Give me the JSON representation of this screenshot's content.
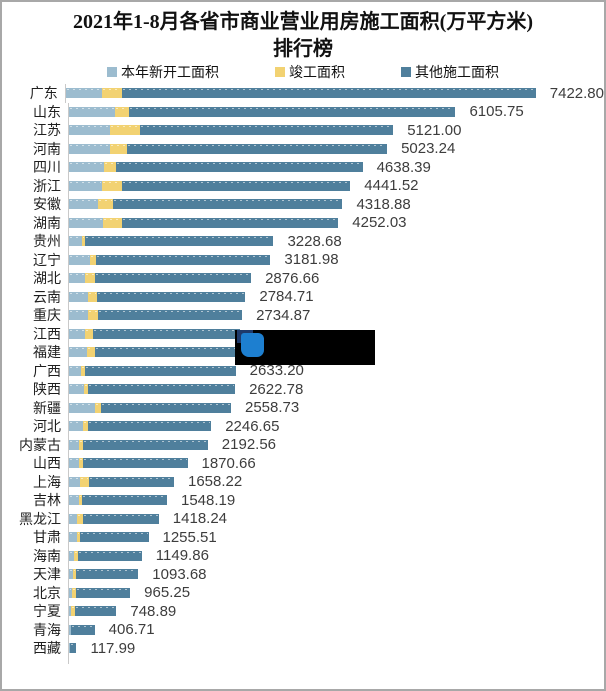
{
  "title": {
    "line1": "2021年1-8月各省市商业营业用房施工面积(万平方米)",
    "line2": "排行榜"
  },
  "legend": [
    {
      "label": "本年新开工面积",
      "color": "#9cbccf"
    },
    {
      "label": "竣工面积",
      "color": "#f2d272"
    },
    {
      "label": "其他施工面积",
      "color": "#4f7f9c"
    }
  ],
  "colors": {
    "new_start": "#9cbccf",
    "completed": "#f2d272",
    "other": "#4f7f9c",
    "axis": "#c9c9c9",
    "value_text": "#3d3d3d",
    "overlay_black": "#000000",
    "overlay_navy": "#1e3a6b",
    "overlay_blue": "#1d7fd0"
  },
  "overlay": {
    "type": "blackout-box",
    "icon": "blue-squares-logo",
    "covers": [
      "江西 value label",
      "福建 value label"
    ]
  },
  "chart_data": {
    "type": "bar",
    "orientation": "horizontal",
    "stacked": true,
    "title": "2021年1-8月各省市商业营业用房施工面积(万平方米)排行榜",
    "unit": "万平方米",
    "legend_position": "top",
    "xlim": [
      0,
      7422.8
    ],
    "series_names": [
      "本年新开工面积",
      "竣工面积",
      "其他施工面积"
    ],
    "note": "totals are printed labels; per-segment splits estimated from pixels; 江西/福建 labels hidden by blackout box (totals interpolated)",
    "bars": [
      {
        "province": "广东",
        "total": 7422.8,
        "label": "7422.80",
        "new_start": 580,
        "completed": 316
      },
      {
        "province": "山东",
        "total": 6105.75,
        "label": "6105.75",
        "new_start": 730,
        "completed": 225
      },
      {
        "province": "江苏",
        "total": 5121.0,
        "label": "5121.00",
        "new_start": 653,
        "completed": 474
      },
      {
        "province": "河南",
        "total": 5023.24,
        "label": "5023.24",
        "new_start": 643,
        "completed": 279
      },
      {
        "province": "四川",
        "total": 4638.39,
        "label": "4638.39",
        "new_start": 553,
        "completed": 195
      },
      {
        "province": "浙江",
        "total": 4441.52,
        "label": "4441.52",
        "new_start": 527,
        "completed": 316
      },
      {
        "province": "安徽",
        "total": 4318.88,
        "label": "4318.88",
        "new_start": 464,
        "completed": 232
      },
      {
        "province": "湖南",
        "total": 4252.03,
        "label": "4252.03",
        "new_start": 542,
        "completed": 290
      },
      {
        "province": "贵州",
        "total": 3228.68,
        "label": "3228.68",
        "new_start": 200,
        "completed": 53
      },
      {
        "province": "辽宁",
        "total": 3181.98,
        "label": "3181.98",
        "new_start": 332,
        "completed": 100
      },
      {
        "province": "湖北",
        "total": 2876.66,
        "label": "2876.66",
        "new_start": 253,
        "completed": 153
      },
      {
        "province": "云南",
        "total": 2784.71,
        "label": "2784.71",
        "new_start": 306,
        "completed": 132
      },
      {
        "province": "重庆",
        "total": 2734.87,
        "label": "2734.87",
        "new_start": 300,
        "completed": 160
      },
      {
        "province": "江西",
        "total": 2700,
        "label": "",
        "new_start": 253,
        "completed": 131,
        "label_hidden": true
      },
      {
        "province": "福建",
        "total": 2665,
        "label": "",
        "new_start": 280,
        "completed": 131,
        "label_hidden": true
      },
      {
        "province": "广西",
        "total": 2633.2,
        "label": "2633.20",
        "new_start": 185,
        "completed": 68
      },
      {
        "province": "陕西",
        "total": 2622.78,
        "label": "2622.78",
        "new_start": 237,
        "completed": 68
      },
      {
        "province": "新疆",
        "total": 2558.73,
        "label": "2558.73",
        "new_start": 411,
        "completed": 90
      },
      {
        "province": "河北",
        "total": 2246.65,
        "label": "2246.65",
        "new_start": 221,
        "completed": 84
      },
      {
        "province": "内蒙古",
        "total": 2192.56,
        "label": "2192.56",
        "new_start": 158,
        "completed": 63
      },
      {
        "province": "山西",
        "total": 1870.66,
        "label": "1870.66",
        "new_start": 158,
        "completed": 63
      },
      {
        "province": "上海",
        "total": 1658.22,
        "label": "1658.22",
        "new_start": 174,
        "completed": 142
      },
      {
        "province": "吉林",
        "total": 1548.19,
        "label": "1548.19",
        "new_start": 158,
        "completed": 47
      },
      {
        "province": "黑龙江",
        "total": 1418.24,
        "label": "1418.24",
        "new_start": 126,
        "completed": 95
      },
      {
        "province": "甘肃",
        "total": 1255.51,
        "label": "1255.51",
        "new_start": 126,
        "completed": 47
      },
      {
        "province": "海南",
        "total": 1149.86,
        "label": "1149.86",
        "new_start": 79,
        "completed": 63
      },
      {
        "province": "天津",
        "total": 1093.68,
        "label": "1093.68",
        "new_start": 63,
        "completed": 47
      },
      {
        "province": "北京",
        "total": 965.25,
        "label": "965.25",
        "new_start": 53,
        "completed": 53
      },
      {
        "province": "宁夏",
        "total": 748.89,
        "label": "748.89",
        "new_start": 37,
        "completed": 58
      },
      {
        "province": "青海",
        "total": 406.71,
        "label": "406.71",
        "new_start": 25,
        "completed": 15
      },
      {
        "province": "西藏",
        "total": 117.99,
        "label": "117.99",
        "new_start": 10,
        "completed": 6
      }
    ]
  }
}
